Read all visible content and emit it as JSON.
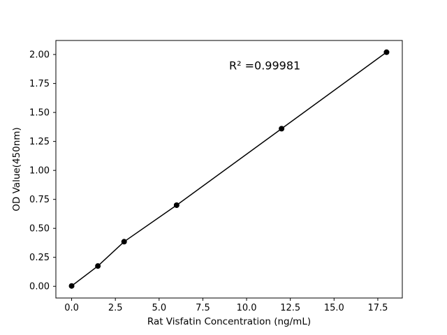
{
  "chart_data": {
    "type": "scatter",
    "title": "",
    "xlabel": "Rat Visfatin Concentration (ng/mL)",
    "ylabel": "OD Value(450nm)",
    "x": [
      0,
      1.5,
      3,
      6,
      12,
      18
    ],
    "y": [
      0.003,
      0.175,
      0.385,
      0.7,
      1.36,
      2.02
    ],
    "line_through_points": true,
    "marker_color": "#000000",
    "line_color": "#000000",
    "xlim": [
      -0.9,
      18.9
    ],
    "ylim": [
      -0.101,
      2.121
    ],
    "x_ticks": [
      0.0,
      2.5,
      5.0,
      7.5,
      10.0,
      12.5,
      15.0,
      17.5
    ],
    "x_tick_labels": [
      "0.0",
      "2.5",
      "5.0",
      "7.5",
      "10.0",
      "12.5",
      "15.0",
      "17.5"
    ],
    "y_ticks": [
      0.0,
      0.25,
      0.5,
      0.75,
      1.0,
      1.25,
      1.5,
      1.75,
      2.0
    ],
    "y_tick_labels": [
      "0.00",
      "0.25",
      "0.50",
      "0.75",
      "1.00",
      "1.25",
      "1.50",
      "1.75",
      "2.00"
    ],
    "grid": false,
    "legend": null,
    "annotation": {
      "text": "R² =0.99981",
      "x": 9.0,
      "y": 1.87
    }
  }
}
